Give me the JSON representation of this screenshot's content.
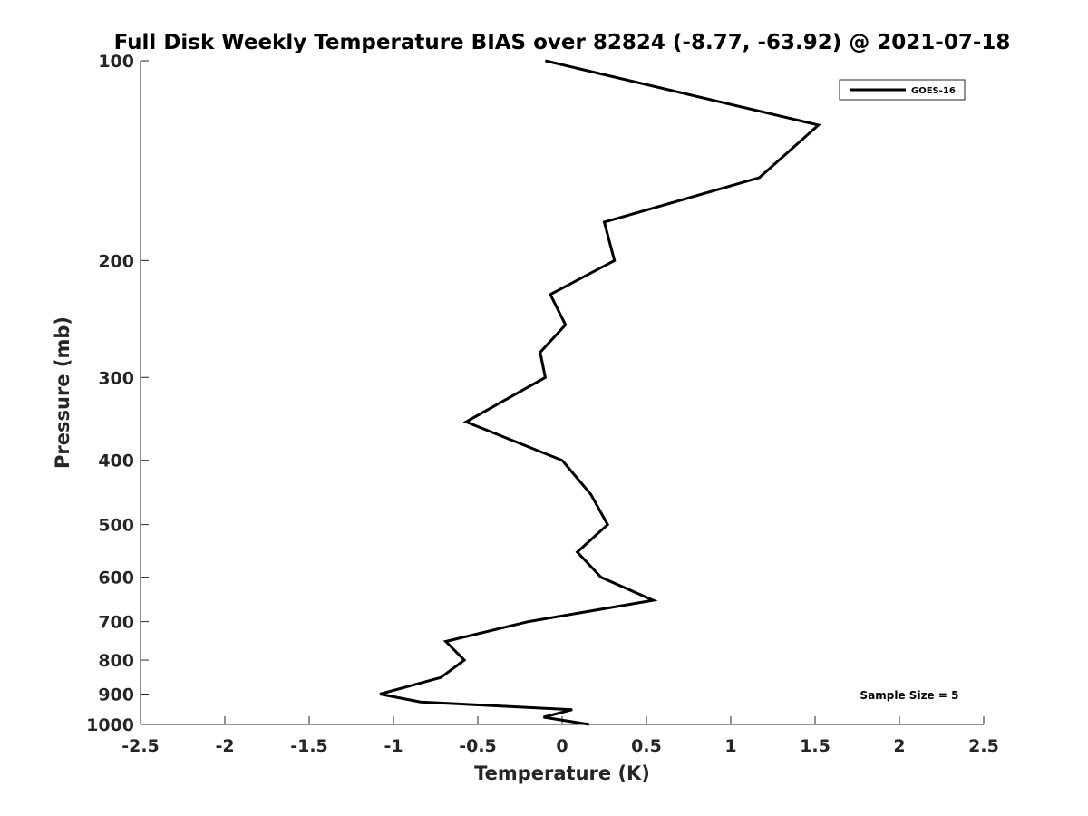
{
  "chart_data": {
    "type": "line",
    "title": "Full Disk Weekly Temperature BIAS over 82824 (-8.77, -63.92) @ 2021-07-18",
    "xlabel": "Temperature (K)",
    "ylabel": "Pressure (mb)",
    "xlim": [
      -2.5,
      2.5
    ],
    "ylim": [
      100,
      1000
    ],
    "y_scale": "log",
    "y_reversed": true,
    "grid": false,
    "legend_position": "top-right",
    "x_ticks": [
      "-2.5",
      "-2",
      "-1.5",
      "-1",
      "-0.5",
      "0",
      "0.5",
      "1",
      "1.5",
      "2",
      "2.5"
    ],
    "y_ticks": [
      "100",
      "200",
      "300",
      "400",
      "500",
      "600",
      "700",
      "800",
      "900",
      "1000"
    ],
    "annotation": "Sample Size = 5",
    "series_color": "#000000",
    "series": [
      {
        "name": "GOES-16",
        "points": [
          {
            "x": -0.1,
            "y": 100
          },
          {
            "x": 1.52,
            "y": 125
          },
          {
            "x": 1.17,
            "y": 150
          },
          {
            "x": 0.25,
            "y": 175
          },
          {
            "x": 0.31,
            "y": 200
          },
          {
            "x": -0.07,
            "y": 225
          },
          {
            "x": 0.02,
            "y": 250
          },
          {
            "x": -0.13,
            "y": 275
          },
          {
            "x": -0.1,
            "y": 300
          },
          {
            "x": -0.57,
            "y": 350
          },
          {
            "x": 0.0,
            "y": 400
          },
          {
            "x": 0.17,
            "y": 450
          },
          {
            "x": 0.27,
            "y": 500
          },
          {
            "x": 0.09,
            "y": 550
          },
          {
            "x": 0.23,
            "y": 600
          },
          {
            "x": 0.54,
            "y": 650
          },
          {
            "x": -0.2,
            "y": 700
          },
          {
            "x": -0.69,
            "y": 750
          },
          {
            "x": -0.58,
            "y": 800
          },
          {
            "x": -0.72,
            "y": 850
          },
          {
            "x": -1.08,
            "y": 900
          },
          {
            "x": -0.84,
            "y": 925
          },
          {
            "x": 0.06,
            "y": 950
          },
          {
            "x": -0.11,
            "y": 975
          },
          {
            "x": 0.16,
            "y": 1000
          }
        ]
      }
    ]
  }
}
